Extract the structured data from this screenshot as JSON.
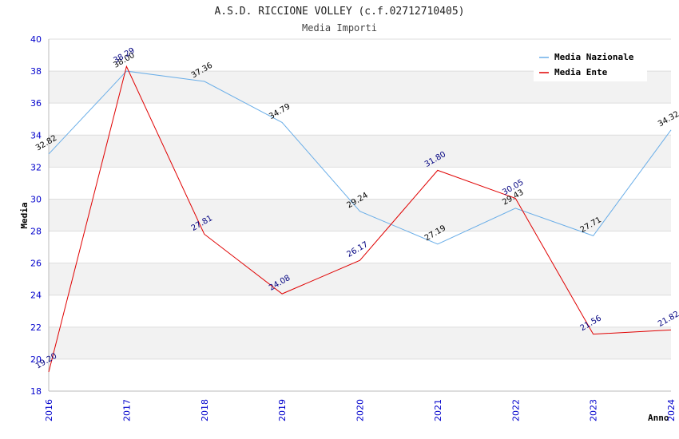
{
  "chart_data": {
    "type": "line",
    "title": "A.S.D. RICCIONE VOLLEY (c.f.02712710405)",
    "subtitle": "Media Importi",
    "xlabel": "Anno",
    "ylabel": "Media",
    "x": [
      "2016",
      "2017",
      "2018",
      "2019",
      "2020",
      "2021",
      "2022",
      "2023",
      "2024"
    ],
    "ylim": [
      18,
      40
    ],
    "yticks": [
      18,
      20,
      22,
      24,
      26,
      28,
      30,
      32,
      34,
      36,
      38,
      40
    ],
    "grid": "horizontal-banded",
    "legend_position": "top-right",
    "series": [
      {
        "name": "Media Nazionale",
        "color": "#6aaee8",
        "label_color": "#000000",
        "values": [
          32.82,
          38.0,
          37.36,
          34.79,
          29.24,
          27.19,
          29.43,
          27.71,
          34.32
        ],
        "labels": [
          "32.82",
          "38.00",
          "37.36",
          "34.79",
          "29.24",
          "27.19",
          "29.43",
          "27.71",
          "34.32"
        ]
      },
      {
        "name": "Media Ente",
        "color": "#e00000",
        "label_color": "#000080",
        "values": [
          19.2,
          38.29,
          27.81,
          24.08,
          26.17,
          31.8,
          30.05,
          21.56,
          21.82
        ],
        "labels": [
          "19.20",
          "38.29",
          "27.81",
          "24.08",
          "26.17",
          "31.80",
          "30.05",
          "21.56",
          "21.82"
        ]
      }
    ]
  },
  "colors": {
    "axis_tick_text": "#0000cc",
    "band_fill": "#f2f2f2",
    "grid_line": "#dddddd"
  }
}
